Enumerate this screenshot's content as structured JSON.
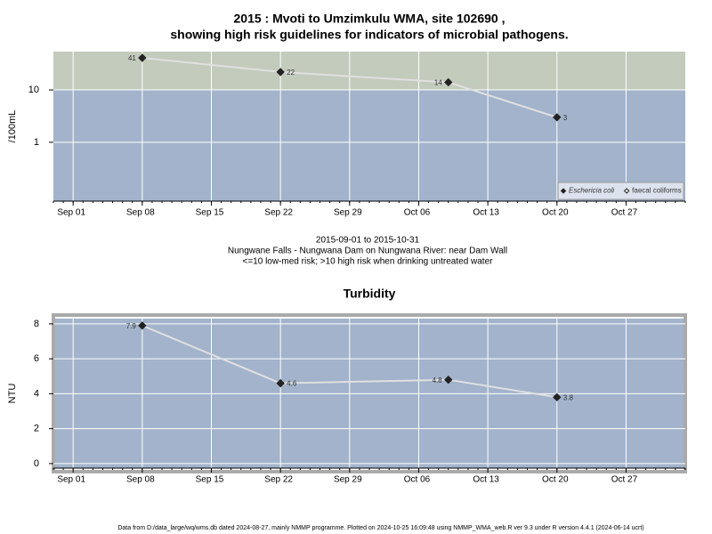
{
  "chart_data": [
    {
      "type": "line",
      "title": [
        "2015 : Mvoti to Umzimkulu WMA, site 102690 ,",
        "showing high risk guidelines for indicators of microbial pathogens."
      ],
      "subtitle": [
        "2015-09-01 to 2015-10-31",
        "Nungwane Falls - Nungwana Dam on Nungwana River: near Dam Wall",
        "<=10 low-med risk; >10 high risk when drinking untreated water"
      ],
      "y_label": "/100mL",
      "x": [
        "Sep 08",
        "Sep 22",
        "Oct 09",
        "Oct 20"
      ],
      "xlim": [
        "Aug 30",
        "Nov 02"
      ],
      "xticks": [
        "Sep 01",
        "Sep 08",
        "Sep 15",
        "Sep 22",
        "Sep 29",
        "Oct 06",
        "Oct 13",
        "Oct 20",
        "Oct 27"
      ],
      "log_y": true,
      "ylim": [
        0.075,
        54
      ],
      "yticks": [
        1,
        10
      ],
      "guideline": 10,
      "band_colors": [
        "#a2b3cb",
        "#c3cbbc"
      ],
      "grid": true,
      "legend": "bottom-right",
      "series": [
        {
          "name": "Eschericia coli",
          "color": "#222222",
          "marker": "filled",
          "values": [
            41,
            22,
            14,
            3
          ]
        },
        {
          "name": "faecal coliforms",
          "color": "#222222",
          "marker": "open",
          "values": [
            null,
            null,
            null,
            null
          ]
        }
      ]
    },
    {
      "type": "line",
      "title": [
        "Turbidity"
      ],
      "y_label": "NTU",
      "x": [
        "Sep 08",
        "Sep 22",
        "Oct 09",
        "Oct 20"
      ],
      "xlim": [
        "Aug 30",
        "Nov 02"
      ],
      "xticks": [
        "Sep 01",
        "Sep 08",
        "Sep 15",
        "Sep 22",
        "Sep 29",
        "Oct 06",
        "Oct 13",
        "Oct 20",
        "Oct 27"
      ],
      "log_y": false,
      "ylim": [
        -0.26,
        8.3
      ],
      "yticks": [
        0,
        2,
        4,
        6,
        8
      ],
      "band_colors": [
        "#a2b3cb"
      ],
      "grid": true,
      "series": [
        {
          "name": "Turbidity",
          "color": "#222222",
          "marker": "filled",
          "values": [
            7.9,
            4.6,
            4.8,
            3.8
          ]
        }
      ]
    }
  ],
  "footer": "Data from D:/data_large/wq/wms.db dated 2024-08-27, mainly NMMP programme. Plotted on 2024-10-25 16:09:48 using NMMP_WMA_web.R ver 9.3 under R version 4.4.1 (2024-06-14 ucrt)"
}
